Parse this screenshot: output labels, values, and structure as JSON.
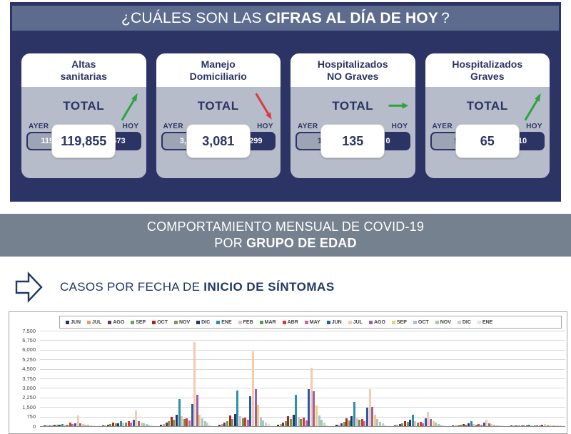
{
  "header": {
    "title_prefix": "¿CUÁLES SON LAS",
    "title_bold": "CIFRAS AL DÍA DE HOY",
    "title_suffix": "?"
  },
  "cards": [
    {
      "title_line1": "Altas",
      "title_line2": "sanitarias",
      "total_label": "TOTAL",
      "ayer_label": "AYER",
      "hoy_label": "HOY",
      "ayer_value": "119,182",
      "total_value": "119,855",
      "hoy_value": "673",
      "trend": "up",
      "trend_color": "#2ca43c",
      "ayer_text_color": "#ffffff"
    },
    {
      "title_line1": "Manejo",
      "title_line2": "Domiciliario",
      "total_label": "TOTAL",
      "ayer_label": "AYER",
      "hoy_label": "HOY",
      "ayer_value": "3,380",
      "total_value": "3,081",
      "hoy_value": "- 299",
      "trend": "down",
      "trend_color": "#d93a3f",
      "ayer_text_color": "#ffffff"
    },
    {
      "title_line1": "Hospitalizados",
      "title_line2": "NO Graves",
      "total_label": "TOTAL",
      "ayer_label": "AYER",
      "hoy_label": "HOY",
      "ayer_value": "135",
      "total_value": "135",
      "hoy_value": "0",
      "trend": "flat",
      "trend_color": "#2ca43c",
      "ayer_text_color": "#2b3464"
    },
    {
      "title_line1": "Hospitalizados",
      "title_line2": "Graves",
      "total_label": "TOTAL",
      "ayer_label": "AYER",
      "hoy_label": "HOY",
      "ayer_value": "55",
      "total_value": "65",
      "hoy_value": "10",
      "trend": "up",
      "trend_color": "#2ca43c",
      "ayer_text_color": "#2b3464"
    }
  ],
  "banner": {
    "line1": "COMPORTAMIENTO MENSUAL DE COVID-19",
    "line2_prefix": "POR",
    "line2_bold": "GRUPO DE EDAD"
  },
  "section_title": {
    "prefix": "CASOS POR FECHA DE",
    "bold": "INICIO DE SÍNTOMAS"
  },
  "chart_data": {
    "type": "bar",
    "title": "CASOS POR FECHA DE INICIO DE SÍNTOMAS",
    "xlabel": "",
    "ylabel": "",
    "ylim": [
      0,
      7500
    ],
    "ytick_interval": 750,
    "ytick_labels": [
      "0",
      "750",
      "1,500",
      "2,250",
      "3,000",
      "3,750",
      "4,500",
      "5,250",
      "6,000",
      "6,750",
      "7,500"
    ],
    "grid": true,
    "legend_position": "top",
    "categories": [
      "",
      "",
      "",
      "",
      "",
      "",
      "",
      "",
      ""
    ],
    "series": [
      {
        "name": "JUN",
        "color": "#1f3864",
        "values": [
          30,
          60,
          120,
          140,
          130,
          110,
          70,
          30,
          10
        ]
      },
      {
        "name": "JUL",
        "color": "#e49c5f",
        "values": [
          40,
          80,
          160,
          180,
          170,
          140,
          90,
          40,
          15
        ]
      },
      {
        "name": "AGO",
        "color": "#5b3a68",
        "values": [
          60,
          120,
          260,
          300,
          280,
          240,
          150,
          70,
          25
        ]
      },
      {
        "name": "SEP",
        "color": "#60a557",
        "values": [
          80,
          160,
          380,
          420,
          400,
          340,
          220,
          100,
          35
        ]
      },
      {
        "name": "OCT",
        "color": "#b02418",
        "values": [
          120,
          280,
          750,
          820,
          760,
          640,
          420,
          180,
          60
        ]
      },
      {
        "name": "NOV",
        "color": "#7a9a51",
        "values": [
          100,
          240,
          520,
          560,
          540,
          460,
          320,
          140,
          50
        ]
      },
      {
        "name": "DIC",
        "color": "#24356b",
        "values": [
          90,
          220,
          900,
          950,
          880,
          760,
          480,
          200,
          70
        ]
      },
      {
        "name": "ENE",
        "color": "#2e8fa8",
        "values": [
          150,
          420,
          2100,
          2800,
          2450,
          1900,
          900,
          380,
          120
        ]
      },
      {
        "name": "FEB",
        "color": "#f3b5c0",
        "values": [
          100,
          260,
          760,
          800,
          740,
          620,
          380,
          160,
          60
        ]
      },
      {
        "name": "MAR",
        "color": "#4ba350",
        "values": [
          120,
          300,
          560,
          600,
          560,
          480,
          300,
          130,
          50
        ]
      },
      {
        "name": "ABR",
        "color": "#d93430",
        "values": [
          260,
          380,
          640,
          700,
          660,
          560,
          360,
          160,
          60
        ]
      },
      {
        "name": "MAY",
        "color": "#c9679e",
        "values": [
          180,
          300,
          440,
          480,
          440,
          380,
          240,
          110,
          40
        ]
      },
      {
        "name": "JUN",
        "color": "#2d59a8",
        "values": [
          200,
          520,
          1750,
          2350,
          2900,
          1450,
          640,
          280,
          90
        ]
      },
      {
        "name": "JUL",
        "color": "#f4cbab",
        "values": [
          820,
          1250,
          6600,
          5900,
          4600,
          2900,
          1120,
          500,
          160
        ]
      },
      {
        "name": "AGO",
        "color": "#9c5fa5",
        "values": [
          240,
          420,
          2450,
          2900,
          2750,
          1500,
          560,
          240,
          80
        ]
      },
      {
        "name": "SEP",
        "color": "#f3cd6b",
        "values": [
          160,
          300,
          900,
          1700,
          1600,
          900,
          380,
          160,
          50
        ]
      },
      {
        "name": "OCT",
        "color": "#9dc3e6",
        "values": [
          120,
          220,
          640,
          700,
          820,
          560,
          260,
          110,
          40
        ]
      },
      {
        "name": "NOV",
        "color": "#a8cd9b",
        "values": [
          90,
          160,
          420,
          460,
          480,
          340,
          180,
          80,
          30
        ]
      },
      {
        "name": "DIC",
        "color": "#c8cdd8",
        "values": [
          60,
          110,
          260,
          280,
          260,
          200,
          120,
          50,
          20
        ]
      },
      {
        "name": "ENE",
        "color": "#f0dcdc",
        "values": [
          40,
          70,
          140,
          150,
          140,
          110,
          70,
          30,
          15
        ]
      }
    ]
  }
}
